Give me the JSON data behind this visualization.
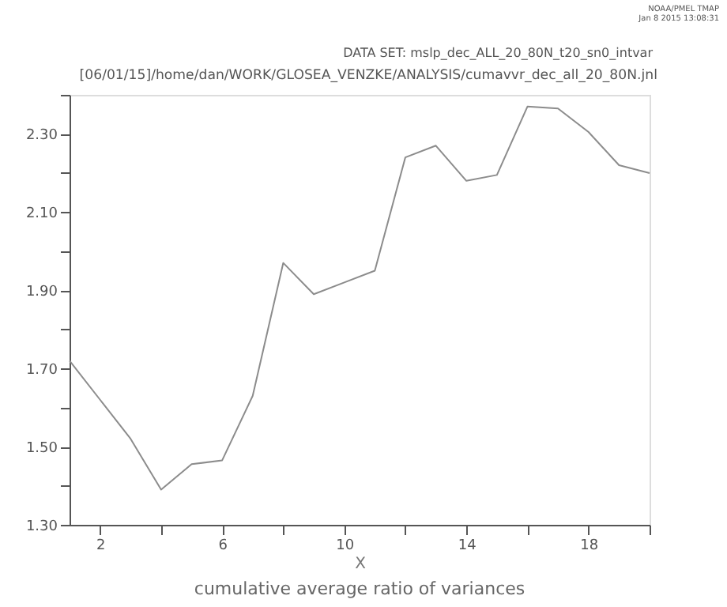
{
  "chart_data": {
    "type": "line",
    "title": "[06/01/15]/home/dan/WORK/GLOSEA_VENZKE/ANALYSIS/cumavvr_dec_all_20_80N.jnl",
    "subtitle": "DATA SET: mslp_dec_ALL_20_80N_t20_sn0_intvar",
    "xlabel": "X",
    "annotations": [
      "NOAA/PMEL TMAP",
      "Jan  8 2015 13:08:31",
      "cumulative average ratio of variances"
    ],
    "x": [
      1,
      2,
      3,
      4,
      5,
      6,
      7,
      8,
      9,
      10,
      11,
      12,
      13,
      14,
      15,
      16,
      17,
      18,
      19,
      20
    ],
    "series": [
      {
        "color": "#8c8c8c",
        "values": [
          1.72,
          1.62,
          1.52,
          1.39,
          1.455,
          1.465,
          1.63,
          1.97,
          1.89,
          1.92,
          1.95,
          2.24,
          2.27,
          2.18,
          2.195,
          2.37,
          2.365,
          2.305,
          2.22,
          2.2
        ]
      }
    ],
    "xlim": [
      1,
      20
    ],
    "xticks": [
      2,
      {
        "value": 4,
        "label": null
      },
      6,
      {
        "value": 8,
        "label": null
      },
      10,
      {
        "value": 12,
        "label": null
      },
      14,
      {
        "value": 16,
        "label": null
      },
      18,
      {
        "value": 20,
        "label": null
      }
    ],
    "ylim": [
      1.3,
      2.4
    ],
    "yticks": [
      {
        "value": 1.3,
        "label": "1.30"
      },
      {
        "value": 1.4,
        "label": null
      },
      {
        "value": 1.5,
        "label": "1.50"
      },
      {
        "value": 1.6,
        "label": null
      },
      {
        "value": 1.7,
        "label": "1.70"
      },
      {
        "value": 1.8,
        "label": null
      },
      {
        "value": 1.9,
        "label": "1.90"
      },
      {
        "value": 2.0,
        "label": null
      },
      {
        "value": 2.1,
        "label": "2.10"
      },
      {
        "value": 2.2,
        "label": null
      },
      {
        "value": 2.3,
        "label": "2.30"
      },
      {
        "value": 2.4,
        "label": null
      }
    ],
    "grid": false,
    "marker": "none",
    "line_style": "solid"
  }
}
